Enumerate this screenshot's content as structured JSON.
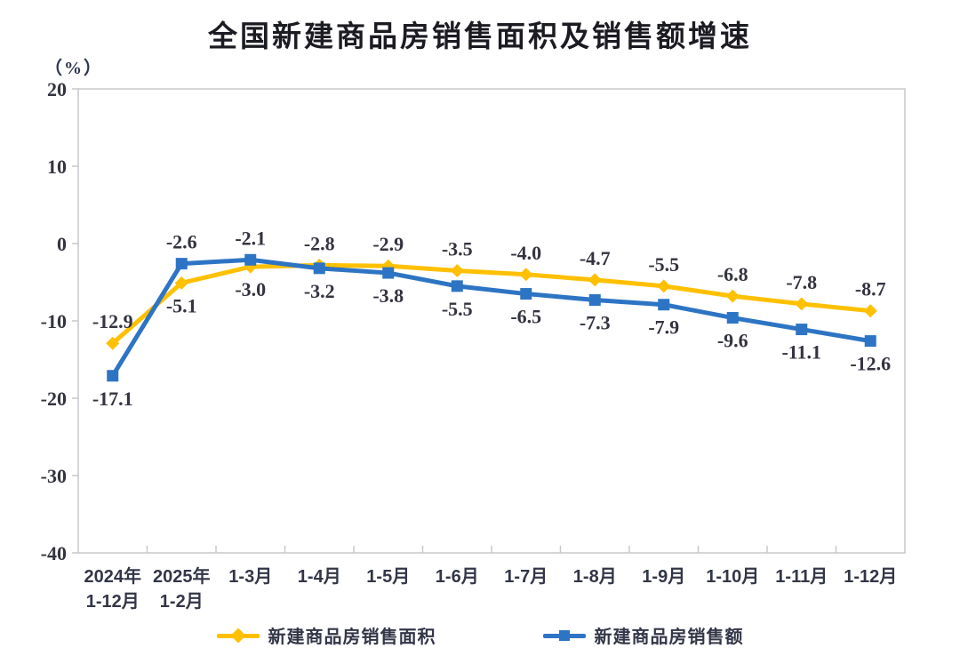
{
  "title": "全国新建商品房销售面积及销售额增速",
  "y_axis_unit": "（%）",
  "chart_data": {
    "type": "line",
    "title": "全国新建商品房销售面积及销售额增速",
    "ylabel": "（%）",
    "categories": [
      "2024年\n1-12月",
      "2025年\n1-2月",
      "1-3月",
      "1-4月",
      "1-5月",
      "1-6月",
      "1-7月",
      "1-8月",
      "1-9月",
      "1-10月",
      "1-11月",
      "1-12月"
    ],
    "series": [
      {
        "name": "新建商品房销售面积",
        "color": "#FFC000",
        "marker": "diamond",
        "values": [
          -12.9,
          -5.1,
          -3.0,
          -2.8,
          -2.9,
          -3.5,
          -4.0,
          -4.7,
          -5.5,
          -6.8,
          -7.8,
          -8.7
        ]
      },
      {
        "name": "新建商品房销售额",
        "color": "#2E74C4",
        "marker": "square",
        "values": [
          -17.1,
          -2.6,
          -2.1,
          -3.2,
          -3.8,
          -5.5,
          -6.5,
          -7.3,
          -7.9,
          -9.6,
          -11.1,
          -12.6
        ]
      }
    ],
    "ylim": [
      -40,
      20
    ],
    "y_ticks": [
      20,
      10,
      0,
      -10,
      -20,
      -30,
      -40
    ],
    "grid": false,
    "data_labels": true,
    "legend_position": "bottom",
    "axis_color": "#c8c8cb"
  }
}
